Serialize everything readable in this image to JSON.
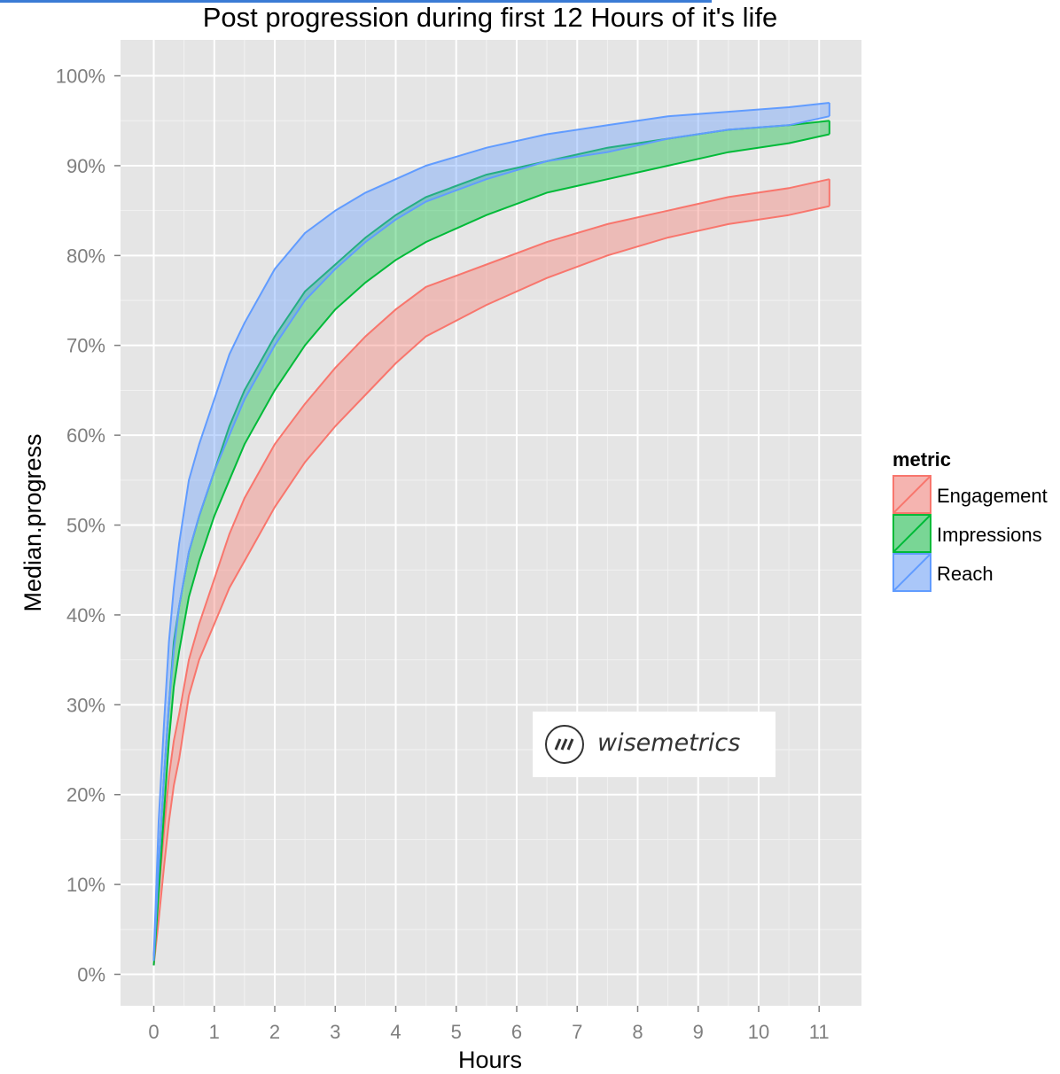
{
  "chart_data": {
    "type": "area",
    "title": "Post progression during first 12 Hours of it's life",
    "xlabel": "Hours",
    "ylabel": "Median.progress",
    "xlim": [
      -0.55,
      11.7
    ],
    "ylim": [
      -0.035,
      1.04
    ],
    "x_ticks": [
      0,
      1,
      2,
      3,
      4,
      5,
      6,
      7,
      8,
      9,
      10,
      11
    ],
    "y_ticks": [
      0,
      0.1,
      0.2,
      0.3,
      0.4,
      0.5,
      0.6,
      0.7,
      0.8,
      0.9,
      1.0
    ],
    "y_tick_labels": [
      "0%",
      "10%",
      "20%",
      "30%",
      "40%",
      "50%",
      "60%",
      "70%",
      "80%",
      "90%",
      "100%"
    ],
    "grid": true,
    "legend": {
      "title": "metric",
      "position": "right"
    },
    "series": [
      {
        "name": "Engagement",
        "color": "#f8766d",
        "x": [
          0,
          0.08,
          0.17,
          0.25,
          0.33,
          0.42,
          0.58,
          0.75,
          1.0,
          1.25,
          1.5,
          2.0,
          2.5,
          3.0,
          3.5,
          4.0,
          4.5,
          5.5,
          6.5,
          7.5,
          8.5,
          9.5,
          10.5,
          11.17
        ],
        "lower": [
          0.01,
          0.06,
          0.12,
          0.17,
          0.21,
          0.24,
          0.31,
          0.35,
          0.39,
          0.43,
          0.46,
          0.52,
          0.57,
          0.61,
          0.645,
          0.68,
          0.71,
          0.745,
          0.775,
          0.8,
          0.82,
          0.835,
          0.845,
          0.855
        ],
        "upper": [
          0.02,
          0.09,
          0.16,
          0.22,
          0.26,
          0.29,
          0.35,
          0.39,
          0.44,
          0.49,
          0.53,
          0.59,
          0.635,
          0.675,
          0.71,
          0.74,
          0.765,
          0.79,
          0.815,
          0.835,
          0.85,
          0.865,
          0.875,
          0.885
        ]
      },
      {
        "name": "Impressions",
        "color": "#00ba38",
        "x": [
          0,
          0.08,
          0.17,
          0.25,
          0.33,
          0.42,
          0.58,
          0.75,
          1.0,
          1.25,
          1.5,
          2.0,
          2.5,
          3.0,
          3.5,
          4.0,
          4.5,
          5.5,
          6.5,
          7.5,
          8.5,
          9.5,
          10.5,
          11.17
        ],
        "lower": [
          0.01,
          0.09,
          0.18,
          0.26,
          0.32,
          0.36,
          0.42,
          0.46,
          0.51,
          0.55,
          0.59,
          0.65,
          0.7,
          0.74,
          0.77,
          0.795,
          0.815,
          0.845,
          0.87,
          0.885,
          0.9,
          0.915,
          0.925,
          0.935
        ],
        "upper": [
          0.015,
          0.12,
          0.22,
          0.3,
          0.37,
          0.41,
          0.47,
          0.51,
          0.56,
          0.61,
          0.65,
          0.71,
          0.76,
          0.79,
          0.82,
          0.845,
          0.865,
          0.89,
          0.905,
          0.92,
          0.93,
          0.94,
          0.945,
          0.95
        ]
      },
      {
        "name": "Reach",
        "color": "#619cff",
        "x": [
          0,
          0.08,
          0.17,
          0.25,
          0.33,
          0.42,
          0.58,
          0.75,
          1.0,
          1.25,
          1.5,
          2.0,
          2.5,
          3.0,
          3.5,
          4.0,
          4.5,
          5.5,
          6.5,
          7.5,
          8.5,
          9.5,
          10.5,
          11.17
        ],
        "lower": [
          0.015,
          0.12,
          0.22,
          0.3,
          0.36,
          0.41,
          0.47,
          0.51,
          0.56,
          0.6,
          0.64,
          0.7,
          0.75,
          0.785,
          0.815,
          0.84,
          0.86,
          0.885,
          0.905,
          0.915,
          0.93,
          0.94,
          0.945,
          0.955
        ],
        "upper": [
          0.02,
          0.17,
          0.28,
          0.37,
          0.43,
          0.48,
          0.55,
          0.59,
          0.64,
          0.69,
          0.725,
          0.785,
          0.825,
          0.85,
          0.87,
          0.885,
          0.9,
          0.92,
          0.935,
          0.945,
          0.955,
          0.96,
          0.965,
          0.97
        ]
      }
    ]
  },
  "watermark": {
    "text": "wisemetrics",
    "icon": "wisemetrics-logo-icon"
  }
}
